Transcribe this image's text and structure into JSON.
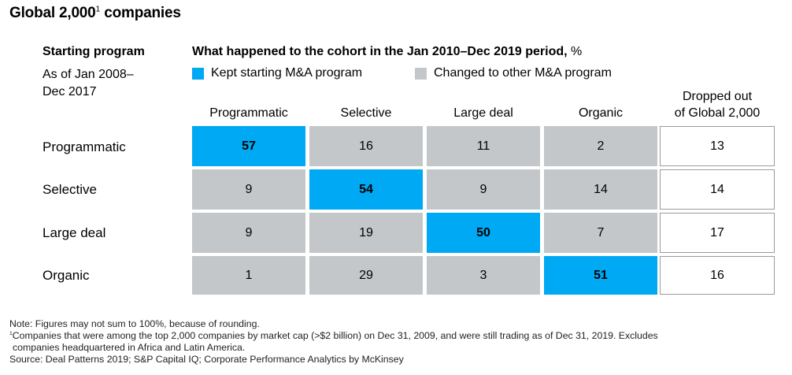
{
  "title": {
    "main": "Global 2,000",
    "footnote_ref": "1",
    "suffix": " companies"
  },
  "left_header": {
    "title": "Starting program",
    "subtitle_line1": "As of Jan 2008–",
    "subtitle_line2": "Dec 2017"
  },
  "right_header": {
    "title": "What happened to the cohort in the Jan 2010–Dec 2019 period,",
    "unit": " %"
  },
  "legend": {
    "kept": "Kept starting M&A program",
    "changed": "Changed to other M&A program",
    "kept_color": "#00a9f4",
    "changed_color": "#c4c7ca"
  },
  "chart_data": {
    "type": "table",
    "title": "Global 2,000 companies",
    "row_header": "Starting program",
    "columns": [
      "Programmatic",
      "Selective",
      "Large deal",
      "Organic"
    ],
    "dropped_header_line1": "Dropped out",
    "dropped_header_line2": "of Global 2,000",
    "rows": [
      {
        "label": "Programmatic",
        "values": [
          "57",
          "16",
          "11",
          "2"
        ],
        "dropped": "13"
      },
      {
        "label": "Selective",
        "values": [
          "9",
          "54",
          "9",
          "14"
        ],
        "dropped": "14"
      },
      {
        "label": "Large deal",
        "values": [
          "9",
          "19",
          "50",
          "7"
        ],
        "dropped": "17"
      },
      {
        "label": "Organic",
        "values": [
          "1",
          "29",
          "3",
          "51"
        ],
        "dropped": "16"
      }
    ]
  },
  "notes": {
    "note": "Note: Figures may not sum to 100%, because of rounding.",
    "footnote_mark": "1",
    "footnote_line1": "Companies that were among the top 2,000 companies by market cap (>$2 billion) on Dec 31, 2009, and were still trading as of Dec 31, 2019. Excludes",
    "footnote_line2": "companies headquartered in Africa and Latin America.",
    "source": "Source: Deal Patterns 2019; S&P Capital IQ; Corporate Performance Analytics by McKinsey"
  }
}
